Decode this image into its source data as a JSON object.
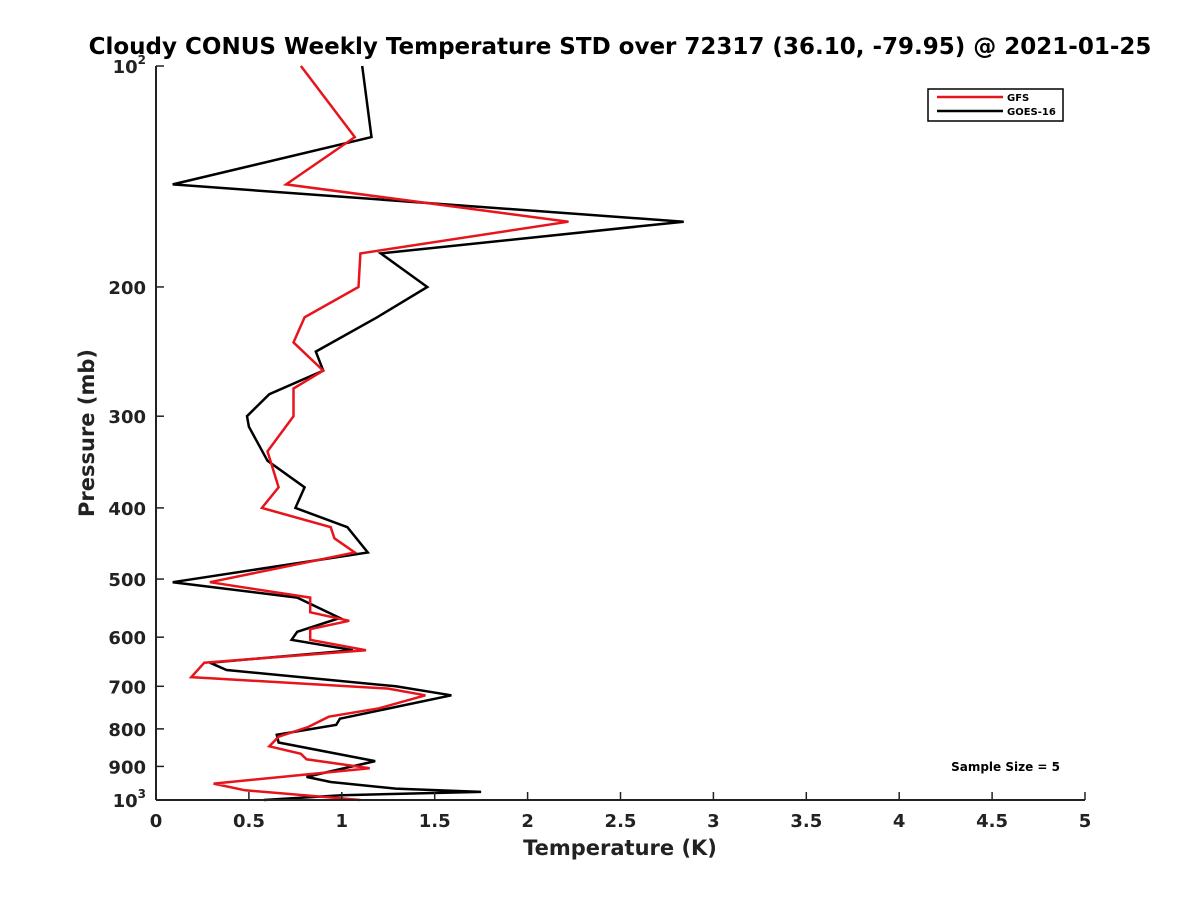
{
  "chart_data": {
    "type": "line",
    "title": "Cloudy CONUS Weekly Temperature STD over 72317 (36.10, -79.95) @ 2021-01-25",
    "xlabel": "Temperature (K)",
    "ylabel": "Pressure (mb)",
    "xlim": [
      0,
      5
    ],
    "ylim": [
      1000,
      100
    ],
    "yscale": "log",
    "y_reversed": true,
    "xticks": [
      "0",
      "0.5",
      "1",
      "1.5",
      "2",
      "2.5",
      "3",
      "3.5",
      "4",
      "4.5",
      "5"
    ],
    "xtick_values": [
      0,
      0.5,
      1,
      1.5,
      2,
      2.5,
      3,
      3.5,
      4,
      4.5,
      5
    ],
    "yticks": [
      {
        "value": 100,
        "base": "10",
        "exp": "2"
      },
      {
        "value": 200,
        "label": "200"
      },
      {
        "value": 300,
        "label": "300"
      },
      {
        "value": 400,
        "label": "400"
      },
      {
        "value": 500,
        "label": "500"
      },
      {
        "value": 600,
        "label": "600"
      },
      {
        "value": 700,
        "label": "700"
      },
      {
        "value": 800,
        "label": "800"
      },
      {
        "value": 900,
        "label": "900"
      },
      {
        "value": 1000,
        "base": "10",
        "exp": "3"
      }
    ],
    "grid": false,
    "legend_position": "top-right",
    "annotation": "Sample Size = 5",
    "series": [
      {
        "name": "GFS",
        "color": "#e8141b",
        "points": [
          [
            0.78,
            100
          ],
          [
            1.07,
            125
          ],
          [
            0.7,
            145
          ],
          [
            2.22,
            163
          ],
          [
            1.1,
            180
          ],
          [
            1.09,
            200
          ],
          [
            0.8,
            220
          ],
          [
            0.74,
            238
          ],
          [
            0.9,
            260
          ],
          [
            0.74,
            275
          ],
          [
            0.74,
            300
          ],
          [
            0.6,
            335
          ],
          [
            0.66,
            375
          ],
          [
            0.57,
            400
          ],
          [
            0.94,
            425
          ],
          [
            0.96,
            440
          ],
          [
            1.07,
            460
          ],
          [
            0.29,
            505
          ],
          [
            0.83,
            530
          ],
          [
            0.83,
            555
          ],
          [
            1.04,
            570
          ],
          [
            0.83,
            585
          ],
          [
            0.83,
            605
          ],
          [
            1.13,
            625
          ],
          [
            0.26,
            650
          ],
          [
            0.19,
            680
          ],
          [
            1.25,
            705
          ],
          [
            1.45,
            720
          ],
          [
            1.2,
            750
          ],
          [
            0.93,
            770
          ],
          [
            0.82,
            795
          ],
          [
            0.66,
            820
          ],
          [
            0.61,
            845
          ],
          [
            0.78,
            865
          ],
          [
            0.81,
            880
          ],
          [
            1.15,
            905
          ],
          [
            0.31,
            950
          ],
          [
            0.48,
            970
          ],
          [
            1.1,
            1000
          ]
        ]
      },
      {
        "name": "GOES-16",
        "color": "#000000",
        "points": [
          [
            1.11,
            100
          ],
          [
            1.16,
            125
          ],
          [
            0.09,
            145
          ],
          [
            2.84,
            163
          ],
          [
            1.21,
            180
          ],
          [
            1.46,
            200
          ],
          [
            1.19,
            220
          ],
          [
            0.86,
            245
          ],
          [
            0.9,
            260
          ],
          [
            0.61,
            280
          ],
          [
            0.49,
            300
          ],
          [
            0.5,
            310
          ],
          [
            0.6,
            345
          ],
          [
            0.8,
            375
          ],
          [
            0.75,
            400
          ],
          [
            1.03,
            425
          ],
          [
            1.14,
            460
          ],
          [
            0.09,
            505
          ],
          [
            0.76,
            530
          ],
          [
            0.99,
            565
          ],
          [
            0.76,
            590
          ],
          [
            0.73,
            605
          ],
          [
            1.06,
            625
          ],
          [
            0.29,
            650
          ],
          [
            0.38,
            665
          ],
          [
            1.29,
            700
          ],
          [
            1.59,
            720
          ],
          [
            0.99,
            775
          ],
          [
            0.97,
            790
          ],
          [
            0.65,
            815
          ],
          [
            0.66,
            835
          ],
          [
            1.18,
            885
          ],
          [
            0.81,
            930
          ],
          [
            0.94,
            945
          ],
          [
            1.29,
            965
          ],
          [
            1.75,
            975
          ],
          [
            1.0,
            985
          ],
          [
            0.58,
            1000
          ]
        ]
      }
    ]
  }
}
